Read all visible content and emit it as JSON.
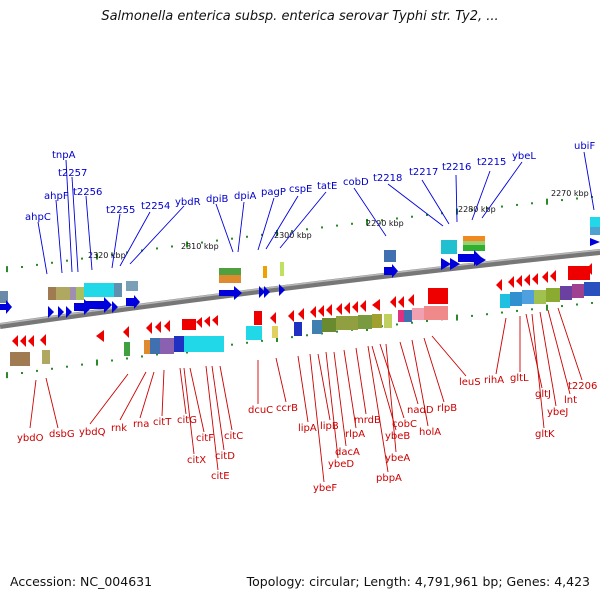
{
  "title": "Salmonella enterica subsp. enterica serovar Typhi str. Ty2, ...",
  "footer": {
    "accession": "Accession: NC_004631",
    "summary": "Topology: circular; Length: 4,791,961 bp; Genes: 4,423"
  },
  "ticks": [
    "2320 kbp",
    "2310 kbp",
    "2300 kbp",
    "2290 kbp",
    "2280 kbp",
    "2270 kbp"
  ],
  "forward_genes": [
    "ahpC",
    "ahpF",
    "tnpA",
    "t2257",
    "t2256",
    "t2255",
    "t2254",
    "ybdR",
    "dpiB",
    "dpiA",
    "pagP",
    "cspE",
    "tatE",
    "cobD",
    "t2218",
    "t2217",
    "t2216",
    "t2215",
    "ybeL",
    "ubiF"
  ],
  "reverse_genes": [
    "ybdO",
    "dsbG",
    "ybdQ",
    "rnk",
    "rna",
    "citT",
    "citG",
    "citX",
    "citF",
    "citE",
    "citD",
    "citC",
    "dcuC",
    "ccrB",
    "lipA",
    "ybeF",
    "lipB",
    "ybeD",
    "dacA",
    "rlpA",
    "mrdB",
    "ybeB",
    "cobC",
    "pbpA",
    "ybeA",
    "nadD",
    "holA",
    "rlpB",
    "leuS",
    "rihA",
    "gltL",
    "gltJ",
    "gltK",
    "ybeJ",
    "lnt",
    "t2206"
  ],
  "colors": {
    "forward_strand": "#0000dd",
    "reverse_strand": "#ee0000",
    "backbone": "#777777",
    "tick": "#2a8a2a"
  }
}
